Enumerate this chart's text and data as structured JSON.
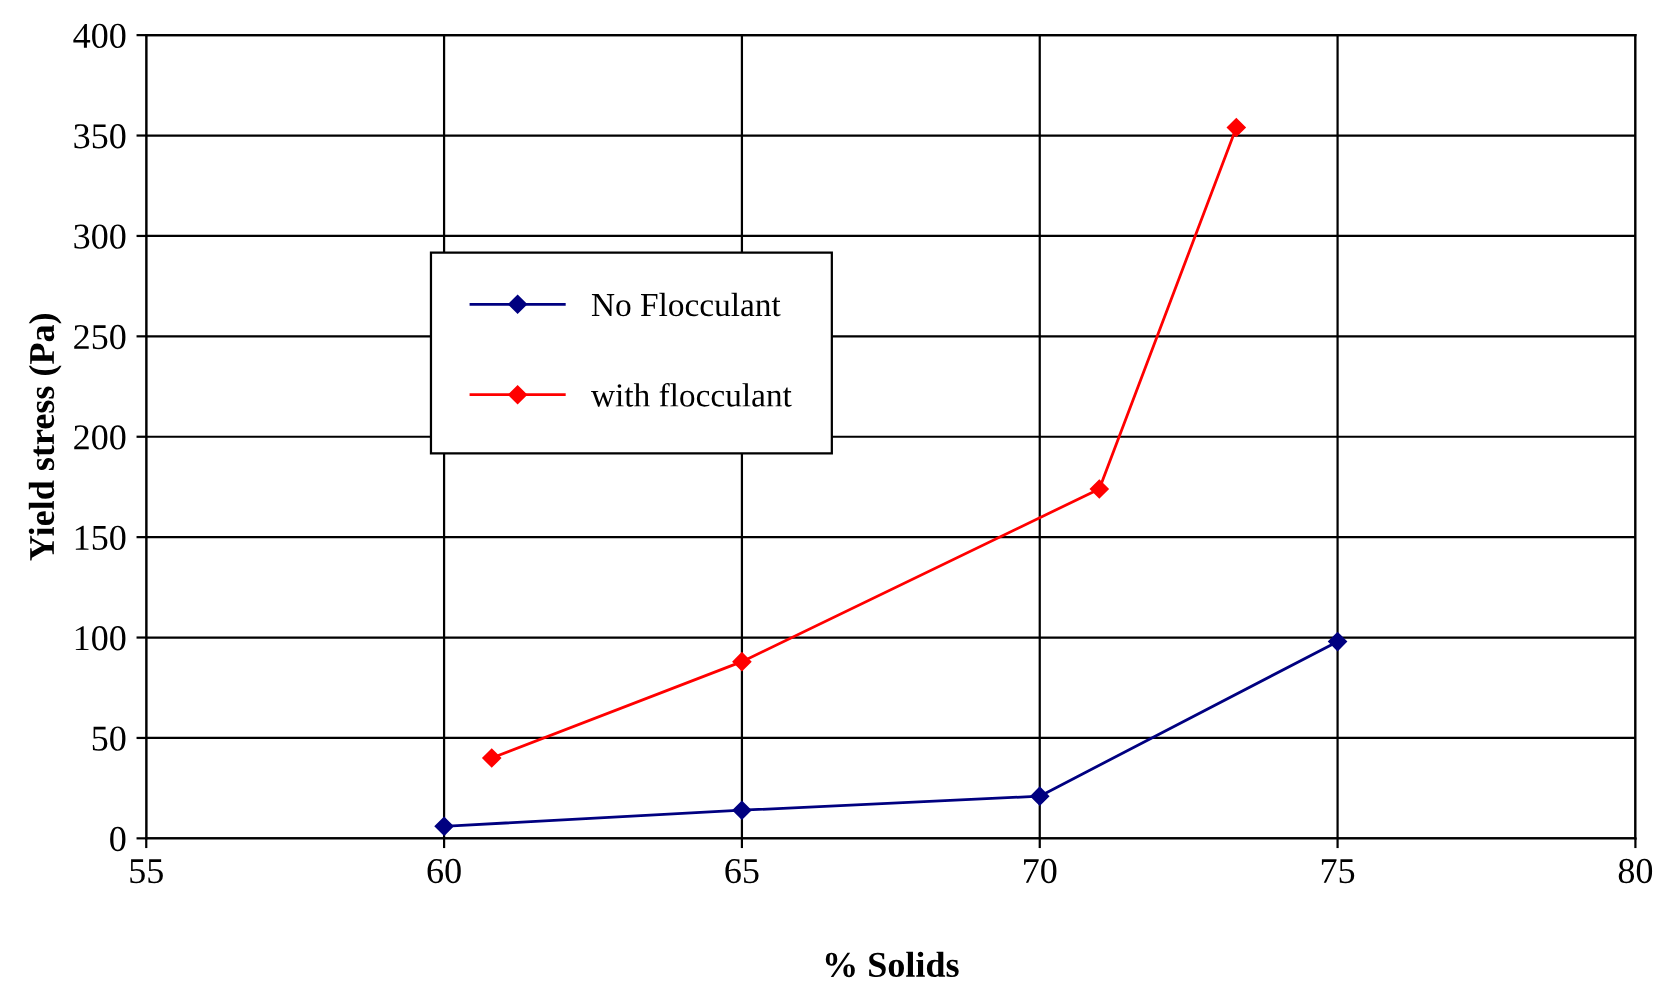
{
  "chart_data": {
    "type": "line",
    "xlabel": "% Solids",
    "ylabel": "Yield stress (Pa)",
    "xlim": [
      55,
      80
    ],
    "xticks": [
      55,
      60,
      65,
      70,
      75,
      80
    ],
    "ylim": [
      0,
      400
    ],
    "yticks": [
      0,
      50,
      100,
      150,
      200,
      250,
      300,
      350,
      400
    ],
    "grid": true,
    "legend": "top left",
    "marker": "diamond",
    "line_style": "solid",
    "series": [
      {
        "name": "No Flocculant",
        "color": "#000080",
        "x": [
          60,
          65,
          70,
          75
        ],
        "values": [
          6,
          14,
          21,
          98
        ]
      },
      {
        "name": "with flocculant",
        "color": "#ff0000",
        "x": [
          60.8,
          65,
          71,
          73.3
        ],
        "values": [
          40,
          88,
          174,
          354
        ]
      }
    ]
  }
}
